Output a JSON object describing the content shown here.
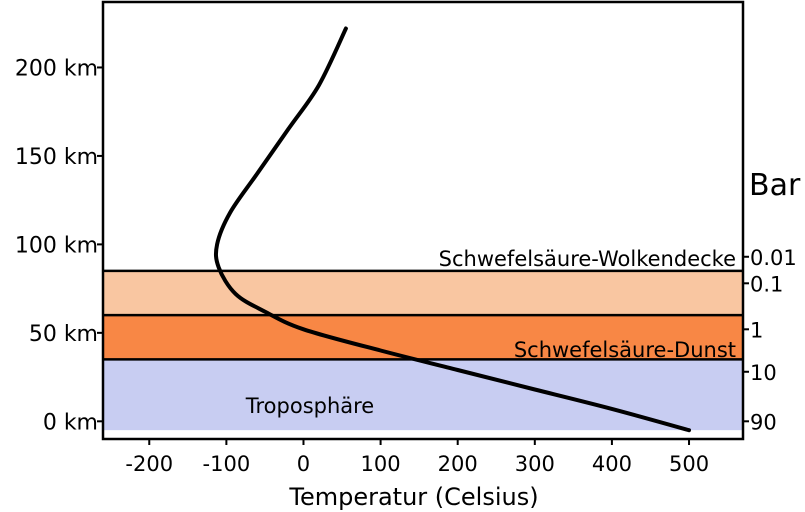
{
  "chart_data": {
    "type": "line",
    "xlabel": "Temperatur (Celsius)",
    "x_ticks": [
      -200,
      -100,
      0,
      100,
      200,
      300,
      400,
      500
    ],
    "xlim": [
      -260,
      570
    ],
    "ylim": [
      -10,
      237
    ],
    "y_ticks": [
      {
        "value": 0,
        "label": "0 km"
      },
      {
        "value": 50,
        "label": "50 km"
      },
      {
        "value": 100,
        "label": "100 km"
      },
      {
        "value": 150,
        "label": "150 km"
      },
      {
        "value": 200,
        "label": "200 km"
      }
    ],
    "right_axis_title": "Bar",
    "pressure_ticks": [
      {
        "altitude": 0,
        "label": "90"
      },
      {
        "altitude": 28,
        "label": "10"
      },
      {
        "altitude": 52,
        "label": "1"
      },
      {
        "altitude": 78,
        "label": "0.1"
      },
      {
        "altitude": 93,
        "label": "0.01"
      }
    ],
    "bands": [
      {
        "name": "troposphere",
        "label": "Troposphäre",
        "from": -5,
        "to": 35,
        "color": "#c8cdf2"
      },
      {
        "name": "haze",
        "label": "Schwefelsäure-Dunst",
        "from": 35,
        "to": 60,
        "color": "#f88745"
      },
      {
        "name": "cloud",
        "label": "Schwefelsäure-Wolkendecke",
        "from": 60,
        "to": 85,
        "color": "#f9c6a1"
      }
    ],
    "series": [
      {
        "color": "#000000",
        "points": [
          [
            500,
            -5
          ],
          [
            400,
            7
          ],
          [
            300,
            18
          ],
          [
            200,
            29
          ],
          [
            100,
            40
          ],
          [
            0,
            52
          ],
          [
            -50,
            62
          ],
          [
            -88,
            72
          ],
          [
            -110,
            87
          ],
          [
            -112,
            100
          ],
          [
            -95,
            118
          ],
          [
            -60,
            140
          ],
          [
            -20,
            165
          ],
          [
            20,
            190
          ],
          [
            55,
            222
          ]
        ]
      }
    ]
  }
}
